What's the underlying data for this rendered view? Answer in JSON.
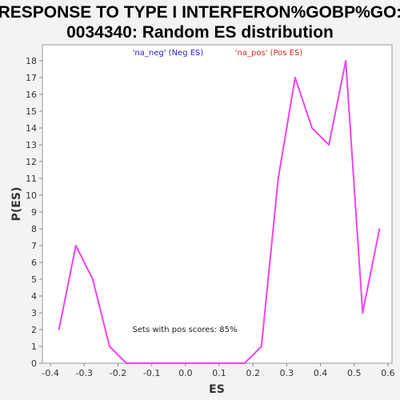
{
  "chart_data": {
    "type": "line",
    "title_lines": [
      "RESPONSE TO TYPE I INTERFERON%GOBP%GO:",
      "0034340: Random ES distribution"
    ],
    "xlabel": "ES",
    "ylabel": "P(ES)",
    "xlim": [
      -0.4,
      0.6
    ],
    "ylim": [
      0,
      19
    ],
    "x_ticks": [
      -0.4,
      -0.3,
      -0.2,
      -0.1,
      0.0,
      0.1,
      0.2,
      0.3,
      0.4,
      0.5,
      0.6
    ],
    "x_tick_labels": [
      "-0.4",
      "-0.3",
      "-0.2",
      "-0.1",
      "0.0",
      "0.1",
      "0.2",
      "0.3",
      "0.4",
      "0.5",
      "0.6"
    ],
    "y_ticks": [
      0,
      1,
      2,
      3,
      4,
      5,
      6,
      7,
      8,
      9,
      10,
      11,
      12,
      13,
      14,
      15,
      16,
      17,
      18
    ],
    "y_tick_labels": [
      "0",
      "1",
      "2",
      "3",
      "4",
      "5",
      "6",
      "7",
      "8",
      "9",
      "10",
      "11",
      "12",
      "13",
      "14",
      "15",
      "16",
      "17",
      "18"
    ],
    "grid": false,
    "legend_position": "top",
    "legend": [
      {
        "label": "'na_neg' (Neg ES)",
        "color": "#2222cc"
      },
      {
        "label": "'na_pos' (Pos ES)",
        "color": "#dd2222"
      }
    ],
    "annotation": "Sets with pos scores: 85%",
    "series": [
      {
        "color": "#ee44ee",
        "x": [
          -0.375,
          -0.325,
          -0.275,
          -0.225,
          -0.175,
          -0.125,
          -0.075,
          -0.025,
          0.025,
          0.075,
          0.125,
          0.175,
          0.225,
          0.275,
          0.325,
          0.375,
          0.425,
          0.475,
          0.525,
          0.575
        ],
        "y": [
          2,
          7,
          5,
          1,
          0,
          0,
          0,
          0,
          0,
          0,
          0,
          0,
          1,
          11,
          17,
          14,
          13,
          18,
          3,
          8
        ]
      }
    ]
  }
}
